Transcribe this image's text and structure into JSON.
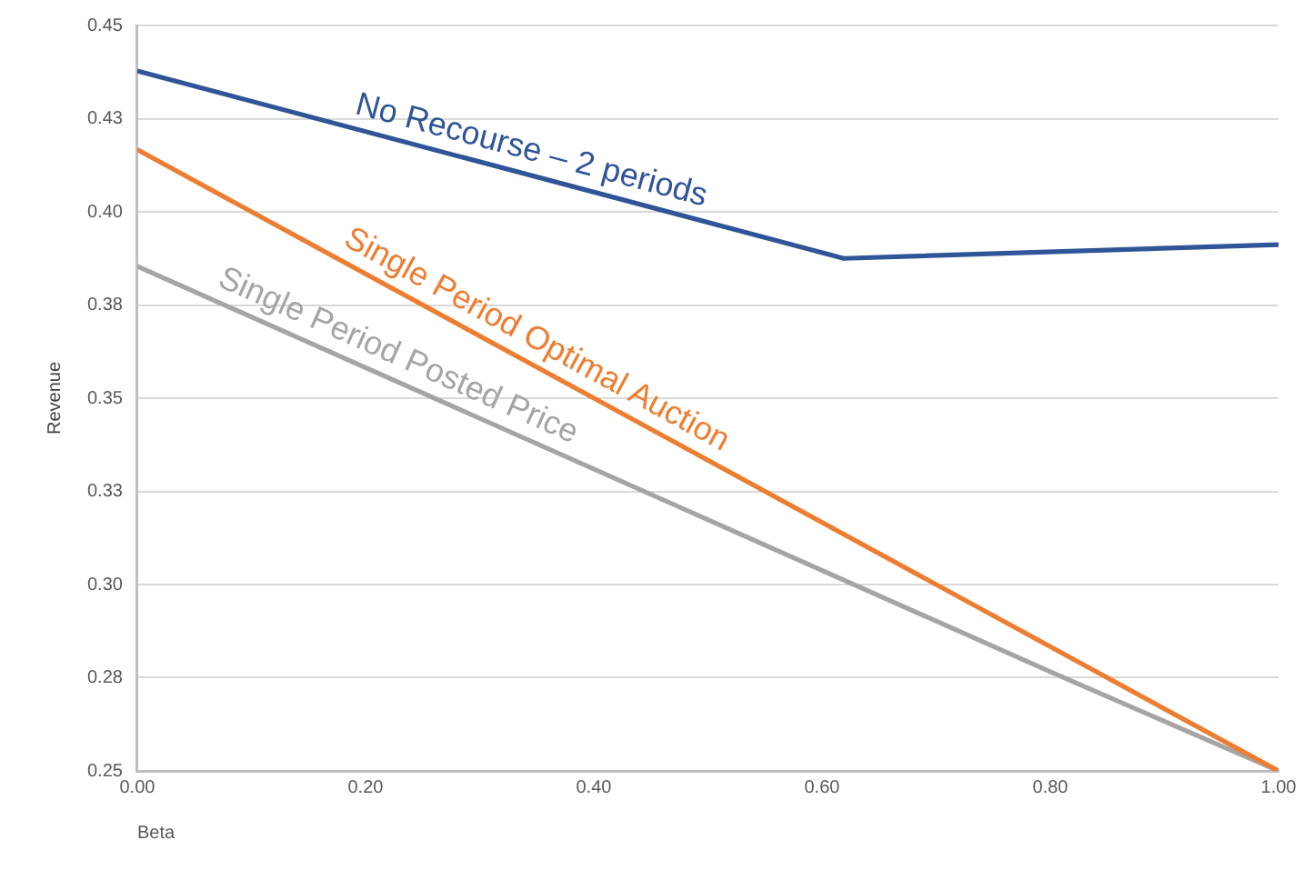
{
  "chart_data": {
    "type": "line",
    "xlabel": "Beta",
    "ylabel": "Revenue",
    "xlim": [
      0,
      1
    ],
    "xticks": [
      {
        "value": 0,
        "label": "0.00"
      },
      {
        "value": 0.2,
        "label": "0.20"
      },
      {
        "value": 0.4,
        "label": "0.40"
      },
      {
        "value": 0.6,
        "label": "0.60"
      },
      {
        "value": 0.8,
        "label": "0.80"
      },
      {
        "value": 1,
        "label": "1.00"
      }
    ],
    "ylim": [
      0.25,
      0.45
    ],
    "yticks": [
      {
        "value": 0.25,
        "label": "0.25"
      },
      {
        "value": 0.275,
        "label": "0.28"
      },
      {
        "value": 0.3,
        "label": "0.30"
      },
      {
        "value": 0.325,
        "label": "0.33"
      },
      {
        "value": 0.35,
        "label": "0.35"
      },
      {
        "value": 0.375,
        "label": "0.38"
      },
      {
        "value": 0.4,
        "label": "0.40"
      },
      {
        "value": 0.425,
        "label": "0.43"
      },
      {
        "value": 0.45,
        "label": "0.45"
      }
    ],
    "grid": "y",
    "legend": false,
    "marker": "none",
    "line_style": "solid",
    "series": [
      {
        "name": "No Recourse – 2 periods",
        "color": "#2f5597",
        "x": [
          0,
          0.619,
          1
        ],
        "values": [
          0.4378,
          0.3875,
          0.3912
        ]
      },
      {
        "name": "Single Period Optimal Auction",
        "color": "#ed7d31",
        "x": [
          0,
          1
        ],
        "values": [
          0.4167,
          0.25
        ]
      },
      {
        "name": "Single Period Posted Price",
        "color": "#a5a5a5",
        "x": [
          0,
          0.8,
          1
        ],
        "values": [
          0.3854,
          0.2766,
          0.25
        ]
      }
    ]
  }
}
